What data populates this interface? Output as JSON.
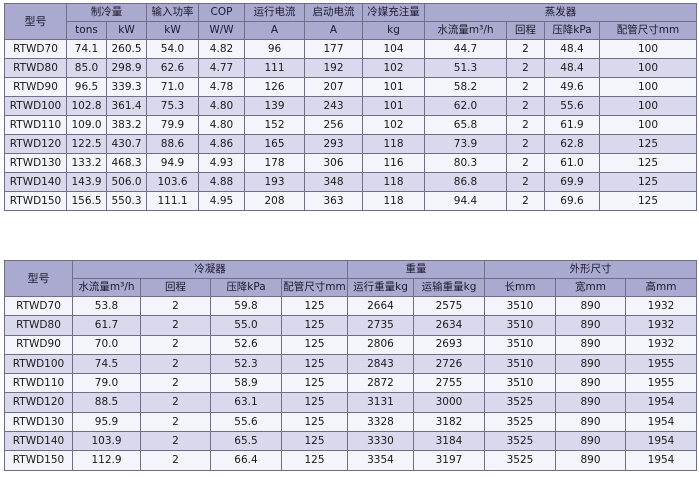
{
  "table1": {
    "headers": {
      "model": "型号",
      "cooling_capacity": "制冷量",
      "input_power": "输入功率",
      "cop": "COP",
      "running_current": "运行电流",
      "starting_current": "启动电流",
      "refrigerant_charge": "冷媒充注量",
      "evaporator": "蒸发器"
    },
    "subheaders": {
      "tons": "tons",
      "kw": "kW",
      "input_kw": "kW",
      "cop_unit": "W/W",
      "run_a": "A",
      "start_a": "A",
      "kg": "kg",
      "water_flow": "水流量m³/h",
      "passes": "回程",
      "pressure_drop": "压降kPa",
      "pipe_size": "配管尺寸mm"
    },
    "rows": [
      [
        "RTWD70",
        "74.1",
        "260.5",
        "54.0",
        "4.82",
        "96",
        "177",
        "104",
        "44.7",
        "2",
        "48.4",
        "100"
      ],
      [
        "RTWD80",
        "85.0",
        "298.9",
        "62.6",
        "4.77",
        "111",
        "192",
        "102",
        "51.3",
        "2",
        "48.4",
        "100"
      ],
      [
        "RTWD90",
        "96.5",
        "339.3",
        "71.0",
        "4.78",
        "126",
        "207",
        "101",
        "58.2",
        "2",
        "49.6",
        "100"
      ],
      [
        "RTWD100",
        "102.8",
        "361.4",
        "75.3",
        "4.80",
        "139",
        "243",
        "101",
        "62.0",
        "2",
        "55.6",
        "100"
      ],
      [
        "RTWD110",
        "109.0",
        "383.2",
        "79.9",
        "4.80",
        "152",
        "256",
        "102",
        "65.8",
        "2",
        "61.9",
        "100"
      ],
      [
        "RTWD120",
        "122.5",
        "430.7",
        "88.6",
        "4.86",
        "165",
        "293",
        "118",
        "73.9",
        "2",
        "62.8",
        "125"
      ],
      [
        "RTWD130",
        "133.2",
        "468.3",
        "94.9",
        "4.93",
        "178",
        "306",
        "116",
        "80.3",
        "2",
        "61.0",
        "125"
      ],
      [
        "RTWD140",
        "143.9",
        "506.0",
        "103.6",
        "4.88",
        "193",
        "348",
        "118",
        "86.8",
        "2",
        "69.9",
        "125"
      ],
      [
        "RTWD150",
        "156.5",
        "550.3",
        "111.1",
        "4.95",
        "208",
        "363",
        "118",
        "94.4",
        "2",
        "69.6",
        "125"
      ]
    ]
  },
  "table2": {
    "headers": {
      "model": "型号",
      "condenser": "冷凝器",
      "weight": "重量",
      "dimensions": "外形尺寸"
    },
    "subheaders": {
      "water_flow": "水流量m³/h",
      "passes": "回程",
      "pressure_drop": "压降kPa",
      "pipe_size": "配管尺寸mm",
      "operating_weight": "运行重量kg",
      "shipping_weight": "运输重量kg",
      "length": "长mm",
      "width": "宽mm",
      "height": "高mm"
    },
    "rows": [
      [
        "RTWD70",
        "53.8",
        "2",
        "59.8",
        "125",
        "2664",
        "2575",
        "3510",
        "890",
        "1932"
      ],
      [
        "RTWD80",
        "61.7",
        "2",
        "55.0",
        "125",
        "2735",
        "2634",
        "3510",
        "890",
        "1932"
      ],
      [
        "RTWD90",
        "70.0",
        "2",
        "52.6",
        "125",
        "2806",
        "2693",
        "3510",
        "890",
        "1932"
      ],
      [
        "RTWD100",
        "74.5",
        "2",
        "52.3",
        "125",
        "2843",
        "2726",
        "3510",
        "890",
        "1955"
      ],
      [
        "RTWD110",
        "79.0",
        "2",
        "58.9",
        "125",
        "2872",
        "2755",
        "3510",
        "890",
        "1955"
      ],
      [
        "RTWD120",
        "88.5",
        "2",
        "63.1",
        "125",
        "3131",
        "3000",
        "3525",
        "890",
        "1954"
      ],
      [
        "RTWD130",
        "95.9",
        "2",
        "55.6",
        "125",
        "3328",
        "3182",
        "3525",
        "890",
        "1954"
      ],
      [
        "RTWD140",
        "103.9",
        "2",
        "65.5",
        "125",
        "3330",
        "3184",
        "3525",
        "890",
        "1954"
      ],
      [
        "RTWD150",
        "112.9",
        "2",
        "66.4",
        "125",
        "3354",
        "3197",
        "3525",
        "890",
        "1954"
      ]
    ]
  },
  "colors": {
    "header_bg": "#aaaad0",
    "row_light": "#f4f4fb",
    "row_dark": "#d9d9ee",
    "border": "#6e6e86"
  }
}
